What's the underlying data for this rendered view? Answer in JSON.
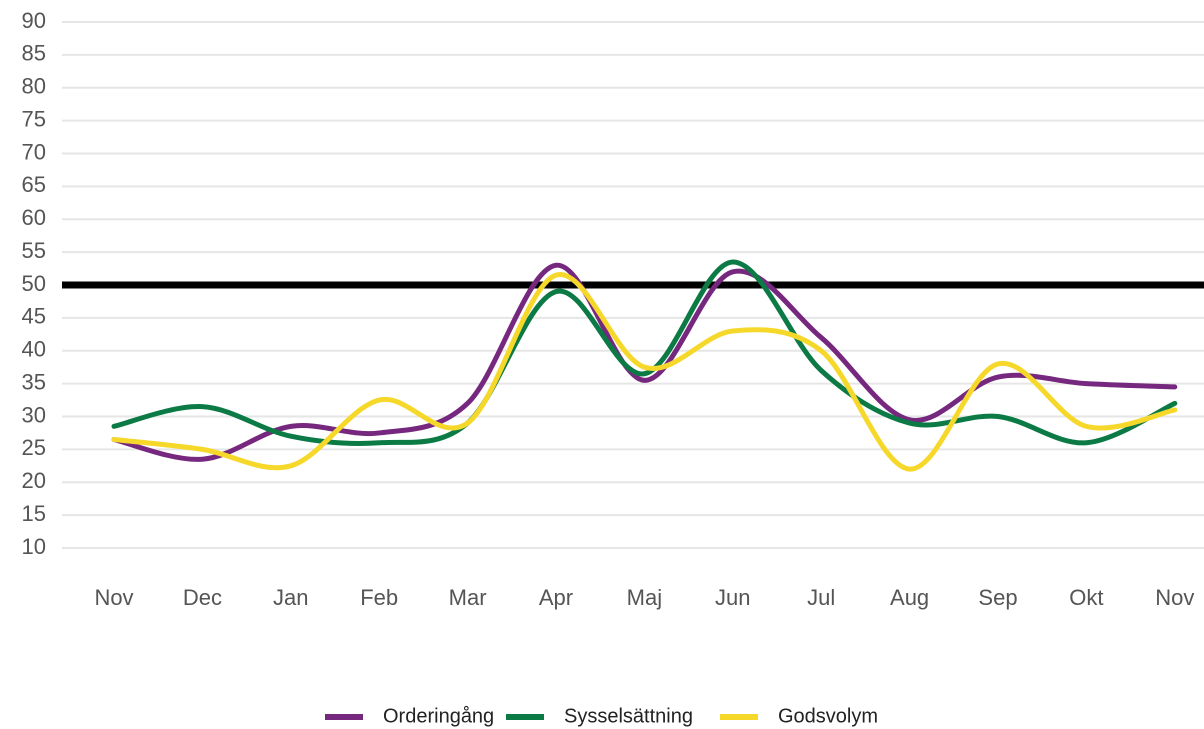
{
  "chart_data": {
    "type": "line",
    "categories": [
      "Nov",
      "Dec",
      "Jan",
      "Feb",
      "Mar",
      "Apr",
      "Maj",
      "Jun",
      "Jul",
      "Aug",
      "Sep",
      "Okt",
      "Nov"
    ],
    "series": [
      {
        "name": "Orderingång",
        "color": "#76287f",
        "values": [
          26.5,
          23.5,
          28.5,
          27.5,
          32,
          53,
          35.5,
          52,
          42,
          29.5,
          36,
          35,
          34.5
        ]
      },
      {
        "name": "Sysselsättning",
        "color": "#0b7a45",
        "values": [
          28.5,
          31.5,
          27,
          26,
          29,
          49,
          36.5,
          53.5,
          37,
          29,
          30,
          26,
          32
        ]
      },
      {
        "name": "Godsvolym",
        "color": "#f6d82a",
        "values": [
          26.5,
          25,
          22.5,
          32.5,
          29,
          51.5,
          37.5,
          43,
          40,
          22,
          38,
          28.5,
          31
        ]
      }
    ],
    "reference_line": 50,
    "ylim": [
      10,
      90
    ],
    "yticks": [
      10,
      15,
      20,
      25,
      30,
      35,
      40,
      45,
      50,
      55,
      60,
      65,
      70,
      75,
      80,
      85,
      90
    ],
    "grid": true,
    "legend": "bottom"
  }
}
